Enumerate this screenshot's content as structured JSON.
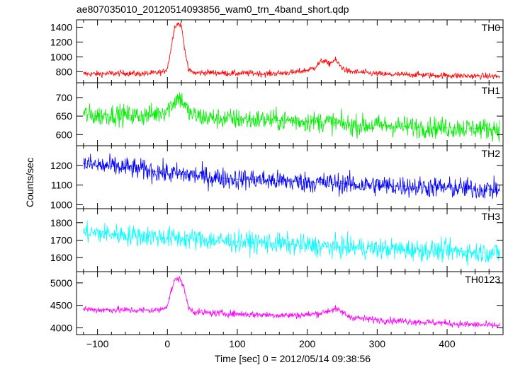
{
  "title": "ae807035010_20120514093856_wam0_trn_4band_short.qdp",
  "chart_data": {
    "type": "line",
    "xlabel": "Time [sec] 0 = 2012/05/14 09:38:56",
    "ylabel": "Counts/sec",
    "xlim": [
      -130,
      480
    ],
    "x_ticks": [
      -100,
      0,
      100,
      200,
      300,
      400
    ],
    "x_tick_labels": [
      "−100",
      "0",
      "100",
      "200",
      "300",
      "400"
    ],
    "series": [
      {
        "name": "TH0",
        "color": "#ff0000",
        "ylim": [
          650,
          1500
        ],
        "y_ticks": [
          800,
          1000,
          1200,
          1400
        ],
        "x": [
          -120,
          -100,
          -80,
          -60,
          -40,
          -20,
          -10,
          -5,
          0,
          5,
          10,
          15,
          20,
          25,
          30,
          40,
          60,
          80,
          100,
          120,
          140,
          160,
          180,
          200,
          210,
          220,
          225,
          230,
          240,
          250,
          260,
          280,
          300,
          320,
          340,
          360,
          380,
          400,
          420,
          440,
          460,
          475
        ],
        "y": [
          770,
          770,
          775,
          780,
          770,
          780,
          790,
          800,
          850,
          1100,
          1400,
          1450,
          1420,
          1100,
          820,
          780,
          790,
          780,
          775,
          780,
          770,
          780,
          790,
          820,
          850,
          940,
          950,
          900,
          960,
          850,
          800,
          790,
          770,
          760,
          760,
          760,
          750,
          750,
          745,
          740,
          740,
          735
        ]
      },
      {
        "name": "TH1",
        "color": "#00ee00",
        "ylim": [
          570,
          740
        ],
        "y_ticks": [
          600,
          650,
          700
        ],
        "x": [
          -120,
          -100,
          -80,
          -60,
          -40,
          -20,
          -10,
          0,
          10,
          15,
          20,
          25,
          30,
          40,
          60,
          80,
          100,
          120,
          140,
          160,
          180,
          200,
          220,
          240,
          260,
          280,
          300,
          320,
          340,
          360,
          380,
          400,
          420,
          440,
          460,
          475
        ],
        "y": [
          655,
          650,
          655,
          652,
          650,
          655,
          660,
          668,
          690,
          700,
          695,
          680,
          660,
          650,
          645,
          643,
          642,
          640,
          640,
          638,
          638,
          635,
          635,
          632,
          625,
          625,
          625,
          624,
          622,
          620,
          620,
          618,
          618,
          617,
          616,
          615
        ]
      },
      {
        "name": "TH2",
        "color": "#0000ff",
        "ylim": [
          980,
          1300
        ],
        "y_ticks": [
          1000,
          1100,
          1200
        ],
        "x": [
          -120,
          -100,
          -80,
          -60,
          -40,
          -20,
          0,
          20,
          40,
          60,
          80,
          100,
          120,
          140,
          160,
          180,
          200,
          220,
          240,
          260,
          280,
          300,
          320,
          340,
          360,
          380,
          400,
          420,
          440,
          460,
          475
        ],
        "y": [
          1210,
          1200,
          1195,
          1190,
          1180,
          1170,
          1160,
          1155,
          1150,
          1140,
          1135,
          1130,
          1130,
          1125,
          1120,
          1118,
          1115,
          1112,
          1110,
          1105,
          1100,
          1100,
          1095,
          1095,
          1090,
          1090,
          1085,
          1085,
          1080,
          1080,
          1075
        ]
      },
      {
        "name": "TH3",
        "color": "#00ffff",
        "ylim": [
          1520,
          1880
        ],
        "y_ticks": [
          1600,
          1700,
          1800
        ],
        "x": [
          -120,
          -100,
          -80,
          -60,
          -40,
          -20,
          0,
          20,
          40,
          60,
          80,
          100,
          120,
          140,
          160,
          180,
          200,
          220,
          240,
          260,
          280,
          300,
          320,
          340,
          360,
          380,
          400,
          420,
          440,
          460,
          475
        ],
        "y": [
          1745,
          1740,
          1735,
          1730,
          1725,
          1720,
          1715,
          1710,
          1705,
          1700,
          1695,
          1690,
          1688,
          1685,
          1680,
          1675,
          1670,
          1665,
          1660,
          1660,
          1655,
          1650,
          1650,
          1645,
          1645,
          1640,
          1640,
          1635,
          1630,
          1630,
          1625
        ]
      },
      {
        "name": "TH0123",
        "color": "#ff00ff",
        "ylim": [
          3850,
          5250
        ],
        "y_ticks": [
          4000,
          4500,
          5000
        ],
        "x": [
          -120,
          -100,
          -80,
          -60,
          -40,
          -20,
          -10,
          0,
          5,
          10,
          15,
          20,
          25,
          30,
          40,
          60,
          80,
          100,
          120,
          140,
          160,
          180,
          200,
          220,
          230,
          240,
          250,
          260,
          280,
          300,
          320,
          340,
          360,
          380,
          400,
          420,
          440,
          460,
          475
        ],
        "y": [
          4420,
          4400,
          4400,
          4395,
          4390,
          4390,
          4400,
          4500,
          4800,
          5050,
          5100,
          5050,
          4800,
          4450,
          4350,
          4330,
          4320,
          4310,
          4300,
          4290,
          4280,
          4280,
          4290,
          4330,
          4380,
          4420,
          4350,
          4250,
          4200,
          4180,
          4160,
          4150,
          4130,
          4120,
          4100,
          4080,
          4070,
          4060,
          4050
        ]
      }
    ]
  }
}
